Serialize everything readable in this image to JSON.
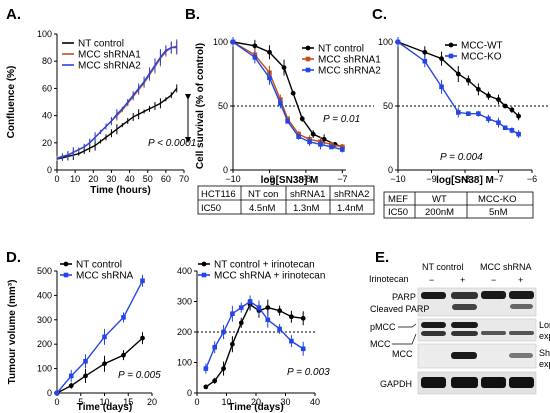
{
  "colors": {
    "nt": "#000000",
    "mcc1": "#c0501c",
    "mcc2": "#2545e6",
    "wt": "#000000",
    "ko": "#2545e6",
    "blot": "#1a1a1a"
  },
  "panels": {
    "A": {
      "label": "A.",
      "pvalue": "P < 0.0001"
    },
    "B": {
      "label": "B.",
      "pvalue": "P = 0.01",
      "table": {
        "header": [
          "HCT116",
          "NT con",
          "shRNA1",
          "shRNA2"
        ],
        "row": [
          "IC50",
          "4.5nM",
          "1.3nM",
          "1.4nM"
        ]
      }
    },
    "C": {
      "label": "C.",
      "pvalue": "P = 0.004",
      "table": {
        "header": [
          "MEF",
          "WT",
          "MCC-KO"
        ],
        "row": [
          "IC50",
          "200nM",
          "5nM"
        ]
      }
    },
    "D": {
      "label": "D.",
      "pvalue1": "P = 0.005",
      "pvalue2": "P = 0.003"
    },
    "E": {
      "label": "E.",
      "irinotecan": "Irinotecan",
      "group1": "NT control",
      "group2": "MCC shRNA",
      "signs": [
        "−",
        "+",
        "−",
        "+"
      ],
      "bands": [
        "PARP",
        "Cleaved PARP",
        "pMCC",
        "MCC",
        "MCC",
        "GAPDH"
      ],
      "exposures": [
        "Long",
        "exposure",
        "Short",
        "exposure"
      ]
    }
  },
  "chart_data": [
    {
      "id": "A",
      "type": "line",
      "title": "",
      "xlabel": "Time (hours)",
      "ylabel": "Confluence (%)",
      "xlim": [
        0,
        70
      ],
      "ylim": [
        0,
        100
      ],
      "xticks": [
        0,
        10,
        20,
        30,
        40,
        50,
        60,
        70
      ],
      "yticks": [
        0,
        20,
        40,
        60,
        80,
        100
      ],
      "x": [
        0,
        3,
        6,
        9,
        12,
        15,
        18,
        21,
        24,
        27,
        30,
        33,
        36,
        39,
        42,
        45,
        48,
        51,
        54,
        57,
        60,
        63,
        66
      ],
      "series": [
        {
          "name": "NT control",
          "color": "nt",
          "values": [
            8,
            9,
            10,
            11,
            12,
            14,
            16,
            18,
            21,
            24,
            27,
            30,
            33,
            36,
            39,
            41,
            43,
            45,
            47,
            49,
            52,
            55,
            60
          ]
        },
        {
          "name": "MCC shRNA1",
          "color": "mcc1",
          "values": [
            9,
            10,
            11,
            13,
            15,
            17,
            20,
            24,
            28,
            32,
            36,
            40,
            44,
            49,
            54,
            59,
            64,
            70,
            76,
            82,
            87,
            90,
            91
          ]
        },
        {
          "name": "MCC shRNA2",
          "color": "mcc2",
          "values": [
            8,
            10,
            11,
            13,
            15,
            17,
            20,
            24,
            28,
            32,
            36,
            41,
            45,
            50,
            55,
            60,
            65,
            71,
            77,
            83,
            88,
            90,
            90
          ]
        }
      ]
    },
    {
      "id": "B",
      "type": "line",
      "title": "",
      "xlabel": "log[SN38] M",
      "ylabel": "Cell survival (% of control)",
      "xlim": [
        -10,
        -6.9
      ],
      "ylim": [
        0,
        100
      ],
      "xticks": [
        -10,
        -9,
        -8,
        -7
      ],
      "yticks": [
        0,
        50,
        100
      ],
      "refline": 50,
      "series": [
        {
          "name": "NT control",
          "color": "nt",
          "x": [
            -10,
            -9.4,
            -9,
            -8.6,
            -8.35,
            -8.1,
            -7.8,
            -7.5,
            -7.2,
            -7.0
          ],
          "values": [
            100,
            97,
            92,
            80,
            60,
            40,
            28,
            24,
            20,
            18
          ]
        },
        {
          "name": "MCC shRNA1",
          "color": "mcc1",
          "x": [
            -10,
            -9.4,
            -9,
            -8.7,
            -8.5,
            -8.2,
            -7.9,
            -7.6,
            -7.3,
            -7.0
          ],
          "values": [
            100,
            90,
            76,
            55,
            40,
            28,
            24,
            22,
            20,
            18
          ]
        },
        {
          "name": "MCC shRNA2",
          "color": "mcc2",
          "x": [
            -10,
            -9.4,
            -9,
            -8.7,
            -8.5,
            -8.2,
            -7.9,
            -7.6,
            -7.3,
            -7.0
          ],
          "values": [
            100,
            88,
            72,
            52,
            38,
            26,
            22,
            20,
            18,
            16
          ]
        }
      ]
    },
    {
      "id": "C",
      "type": "line",
      "title": "",
      "xlabel": "log[SN38] M",
      "ylabel": "",
      "xlim": [
        -10,
        -6
      ],
      "ylim": [
        0,
        100
      ],
      "xticks": [
        -10,
        -9,
        -8,
        -7,
        -6
      ],
      "yticks": [
        0,
        50,
        100
      ],
      "refline": 50,
      "series": [
        {
          "name": "MCC-WT",
          "color": "wt",
          "x": [
            -10,
            -9.2,
            -8.7,
            -8.2,
            -7.9,
            -7.6,
            -7.3,
            -7.0,
            -6.8,
            -6.6,
            -6.4
          ],
          "values": [
            100,
            92,
            87,
            75,
            70,
            63,
            58,
            55,
            50,
            47,
            42
          ]
        },
        {
          "name": "MCC-KO",
          "color": "ko",
          "x": [
            -10,
            -9.2,
            -8.7,
            -8.2,
            -7.9,
            -7.6,
            -7.3,
            -7.0,
            -6.8,
            -6.6,
            -6.4
          ],
          "values": [
            100,
            85,
            65,
            45,
            44,
            44,
            40,
            37,
            33,
            31,
            28
          ]
        }
      ]
    },
    {
      "id": "D1",
      "type": "line",
      "title": "",
      "xlabel": "Time (days)",
      "ylabel": "Tumour volume (mm³)",
      "xlim": [
        0,
        20
      ],
      "ylim": [
        0,
        500
      ],
      "xticks": [
        0,
        5,
        10,
        15,
        20
      ],
      "yticks": [
        0,
        100,
        200,
        300,
        400,
        500
      ],
      "series": [
        {
          "name": "NT control",
          "color": "nt",
          "x": [
            0,
            3,
            6,
            10,
            14,
            18
          ],
          "values": [
            0,
            30,
            70,
            120,
            155,
            225
          ]
        },
        {
          "name": "MCC shRNA",
          "color": "mcc2",
          "x": [
            0,
            3,
            6,
            10,
            14,
            18
          ],
          "values": [
            0,
            70,
            130,
            230,
            310,
            460
          ]
        }
      ]
    },
    {
      "id": "D2",
      "type": "line",
      "title": "",
      "xlabel": "Time (days)",
      "ylabel": "",
      "xlim": [
        0,
        40
      ],
      "ylim": [
        0,
        400
      ],
      "xticks": [
        0,
        10,
        20,
        30,
        40
      ],
      "yticks": [
        0,
        100,
        200,
        300,
        400
      ],
      "refline": 200,
      "series": [
        {
          "name": "NT control + irinotecan",
          "color": "nt",
          "x": [
            3,
            6,
            9,
            12,
            15,
            18,
            21,
            24,
            28,
            32,
            36
          ],
          "values": [
            20,
            40,
            80,
            160,
            230,
            290,
            270,
            280,
            270,
            250,
            245
          ]
        },
        {
          "name": "MCC shRNA + irinotecan",
          "color": "mcc2",
          "x": [
            3,
            6,
            9,
            12,
            15,
            18,
            21,
            24,
            28,
            32,
            36
          ],
          "values": [
            80,
            150,
            200,
            260,
            280,
            300,
            280,
            240,
            210,
            170,
            145
          ]
        }
      ]
    }
  ]
}
